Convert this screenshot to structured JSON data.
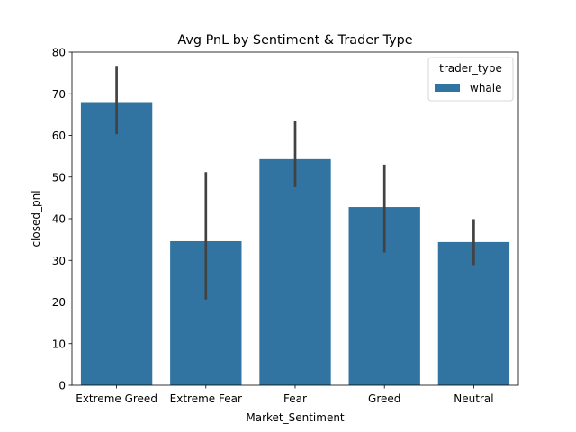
{
  "chart_data": {
    "type": "bar",
    "title": "Avg PnL by Sentiment & Trader Type",
    "xlabel": "Market_Sentiment",
    "ylabel": "closed_pnl",
    "categories": [
      "Extreme Greed",
      "Extreme Fear",
      "Fear",
      "Greed",
      "Neutral"
    ],
    "series": [
      {
        "name": "whale",
        "values": [
          68.0,
          34.6,
          54.3,
          42.8,
          34.4
        ],
        "ci_low": [
          60.3,
          20.6,
          47.6,
          31.9,
          28.9
        ],
        "ci_high": [
          76.7,
          51.2,
          63.4,
          53.0,
          39.9
        ]
      }
    ],
    "ylim": [
      0,
      80
    ],
    "yticks": [
      0,
      10,
      20,
      30,
      40,
      50,
      60,
      70,
      80
    ],
    "grid": false,
    "legend": {
      "title": "trader_type",
      "placement": "top-right"
    },
    "colors": {
      "bar": "#3274a1",
      "errorbar": "#424242",
      "axis": "#000000"
    }
  }
}
